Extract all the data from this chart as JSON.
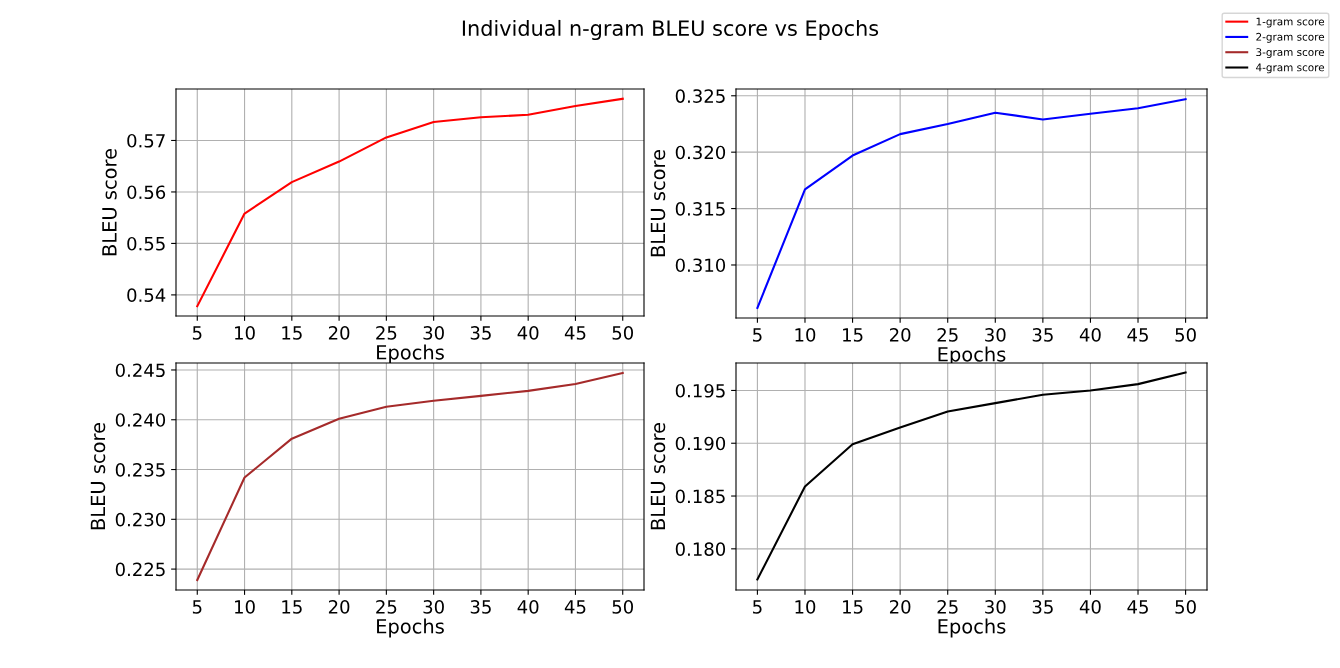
{
  "chart_data": [
    {
      "type": "line",
      "title": "Individual n-gram BLEU score vs Epochs",
      "xlabel": "Epochs",
      "ylabel": "BLEU score",
      "x": [
        5,
        10,
        15,
        20,
        25,
        30,
        35,
        40,
        45,
        50
      ],
      "series": [
        {
          "name": "1-gram score",
          "color": "#ff0000",
          "values": [
            0.5378,
            0.5558,
            0.5619,
            0.5659,
            0.5706,
            0.5736,
            0.5745,
            0.575,
            0.5767,
            0.5781
          ]
        }
      ],
      "xlim": [
        2.75,
        52.25
      ],
      "xticks": [
        5,
        10,
        15,
        20,
        25,
        30,
        35,
        40,
        45,
        50
      ],
      "ylim": [
        0.5359,
        0.58
      ],
      "yticks": [
        0.54,
        0.55,
        0.56,
        0.57
      ],
      "grid": true,
      "legend": "top right"
    },
    {
      "type": "line",
      "xlabel": "Epochs",
      "ylabel": "BLEU score",
      "x": [
        5,
        10,
        15,
        20,
        25,
        30,
        35,
        40,
        45,
        50
      ],
      "series": [
        {
          "name": "2-gram score",
          "color": "#0000ff",
          "values": [
            0.3062,
            0.3167,
            0.3197,
            0.3216,
            0.3225,
            0.3235,
            0.3229,
            0.3234,
            0.3239,
            0.3247
          ]
        }
      ],
      "xlim": [
        2.75,
        52.25
      ],
      "xticks": [
        5,
        10,
        15,
        20,
        25,
        30,
        35,
        40,
        45,
        50
      ],
      "ylim": [
        0.3053,
        0.3256
      ],
      "yticks": [
        {
          "value": 0.31,
          "label": "0.310"
        },
        0.315,
        {
          "value": 0.32,
          "label": "0.320"
        },
        0.325
      ],
      "grid": true,
      "legend": "top right"
    },
    {
      "type": "line",
      "xlabel": "Epochs",
      "ylabel": "BLEU score",
      "x": [
        5,
        10,
        15,
        20,
        25,
        30,
        35,
        40,
        45,
        50
      ],
      "series": [
        {
          "name": "3-gram score",
          "color": "#a52a2a",
          "values": [
            0.2239,
            0.2342,
            0.2381,
            0.2401,
            0.2413,
            0.2419,
            0.2424,
            0.2429,
            0.2436,
            0.2447
          ]
        }
      ],
      "xlim": [
        2.75,
        52.25
      ],
      "xticks": [
        5,
        10,
        15,
        20,
        25,
        30,
        35,
        40,
        45,
        50
      ],
      "ylim": [
        0.2229,
        0.2457
      ],
      "yticks": [
        0.225,
        {
          "value": 0.23,
          "label": "0.230"
        },
        0.235,
        {
          "value": 0.24,
          "label": "0.240"
        },
        0.245
      ],
      "grid": true,
      "legend": "top right"
    },
    {
      "type": "line",
      "xlabel": "Epochs",
      "ylabel": "BLEU score",
      "x": [
        5,
        10,
        15,
        20,
        25,
        30,
        35,
        40,
        45,
        50
      ],
      "series": [
        {
          "name": "4-gram score",
          "color": "#000000",
          "values": [
            0.1771,
            0.1859,
            0.1899,
            0.1915,
            0.193,
            0.1938,
            0.1946,
            0.195,
            0.1956,
            0.1967
          ]
        }
      ],
      "xlim": [
        2.75,
        52.25
      ],
      "xticks": [
        5,
        10,
        15,
        20,
        25,
        30,
        35,
        40,
        45,
        50
      ],
      "ylim": [
        0.1761,
        0.1976
      ],
      "yticks": [
        {
          "value": 0.18,
          "label": "0.180"
        },
        0.185,
        {
          "value": 0.19,
          "label": "0.190"
        },
        0.195
      ],
      "grid": true,
      "legend": "top right"
    }
  ]
}
